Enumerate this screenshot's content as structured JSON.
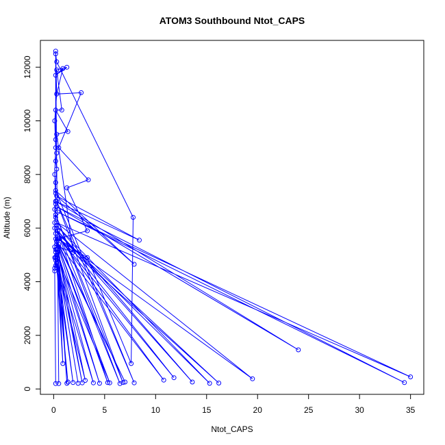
{
  "chart_data": {
    "type": "line",
    "title": "ATOM3 Southbound Ntot_CAPS",
    "xlabel": "Ntot_CAPS",
    "ylabel": "Altitude (m)",
    "xlim": [
      -1.3,
      36.3
    ],
    "ylim": [
      -200,
      13000
    ],
    "xticks": [
      0,
      5,
      10,
      15,
      20,
      25,
      30,
      35
    ],
    "yticks": [
      0,
      2000,
      4000,
      6000,
      8000,
      10000,
      12000
    ],
    "grid": false,
    "legend": "none",
    "series_color": "#0000ff",
    "series": [
      {
        "points": [
          [
            0.5,
            200
          ],
          [
            0.2,
            12600
          ],
          [
            0.3,
            11000
          ],
          [
            0.1,
            10000
          ],
          [
            0.2,
            9000
          ],
          [
            0.1,
            8000
          ],
          [
            0.2,
            7000
          ],
          [
            0.1,
            6000
          ],
          [
            0.3,
            5500
          ],
          [
            0.1,
            4500
          ],
          [
            0.4,
            4900
          ],
          [
            5.5,
            230
          ],
          [
            0.3,
            5500
          ],
          [
            7.0,
            260
          ],
          [
            0.5,
            5400
          ],
          [
            10.8,
            330
          ],
          [
            0.6,
            5600
          ],
          [
            11.8,
            420
          ],
          [
            0.4,
            5900
          ],
          [
            13.6,
            260
          ],
          [
            0.3,
            6100
          ],
          [
            15.3,
            210
          ],
          [
            0.4,
            5800
          ],
          [
            16.2,
            220
          ],
          [
            0.5,
            5600
          ],
          [
            19.5,
            380
          ],
          [
            0.3,
            6200
          ],
          [
            35.0,
            450
          ],
          [
            0.4,
            6600
          ],
          [
            34.4,
            240
          ],
          [
            0.3,
            6800
          ],
          [
            24.0,
            1460
          ],
          [
            0.2,
            7000
          ],
          [
            8.4,
            5550
          ],
          [
            0.3,
            7200
          ],
          [
            7.9,
            4650
          ],
          [
            0.2,
            7400
          ],
          [
            7.9,
            230
          ],
          [
            0.3,
            7000
          ],
          [
            6.8,
            240
          ],
          [
            0.2,
            6500
          ],
          [
            6.5,
            200
          ],
          [
            0.3,
            6000
          ],
          [
            5.3,
            240
          ],
          [
            0.2,
            5600
          ],
          [
            4.5,
            210
          ],
          [
            0.3,
            5200
          ],
          [
            3.9,
            230
          ],
          [
            0.2,
            4800
          ],
          [
            3.1,
            320
          ],
          [
            0.3,
            5400
          ],
          [
            2.8,
            230
          ],
          [
            0.2,
            5200
          ],
          [
            2.4,
            210
          ],
          [
            0.3,
            5000
          ],
          [
            1.9,
            240
          ],
          [
            0.2,
            4900
          ],
          [
            1.4,
            260
          ],
          [
            0.3,
            4700
          ],
          [
            0.9,
            950
          ],
          [
            0.4,
            5100
          ],
          [
            1.3,
            210
          ],
          [
            0.5,
            5300
          ],
          [
            1.9,
            5100
          ],
          [
            0.3,
            9500
          ],
          [
            1.4,
            9600
          ],
          [
            0.2,
            10400
          ],
          [
            0.8,
            10400
          ],
          [
            0.3,
            11900
          ],
          [
            1.3,
            12000
          ],
          [
            0.2,
            11700
          ],
          [
            0.9,
            11950
          ],
          [
            0.3,
            11000
          ],
          [
            2.7,
            11050
          ],
          [
            0.5,
            9000
          ],
          [
            3.4,
            7800
          ],
          [
            1.3,
            7500
          ],
          [
            3.3,
            5900
          ],
          [
            0.4,
            5600
          ],
          [
            3.3,
            4900
          ],
          [
            7.6,
            950
          ],
          [
            7.8,
            6400
          ],
          [
            0.3,
            12200
          ],
          [
            0.2,
            12500
          ],
          [
            0.2,
            9300
          ],
          [
            0.3,
            8800
          ],
          [
            0.2,
            8500
          ],
          [
            0.3,
            8200
          ],
          [
            0.2,
            7700
          ],
          [
            0.2,
            7300
          ],
          [
            0.2,
            6900
          ],
          [
            0.1,
            6700
          ],
          [
            0.2,
            6400
          ],
          [
            0.1,
            6200
          ],
          [
            0.2,
            5800
          ],
          [
            0.1,
            5300
          ],
          [
            0.2,
            5100
          ],
          [
            0.1,
            4900
          ],
          [
            0.2,
            4600
          ],
          [
            0.1,
            4400
          ],
          [
            0.2,
            200
          ]
        ]
      }
    ]
  }
}
